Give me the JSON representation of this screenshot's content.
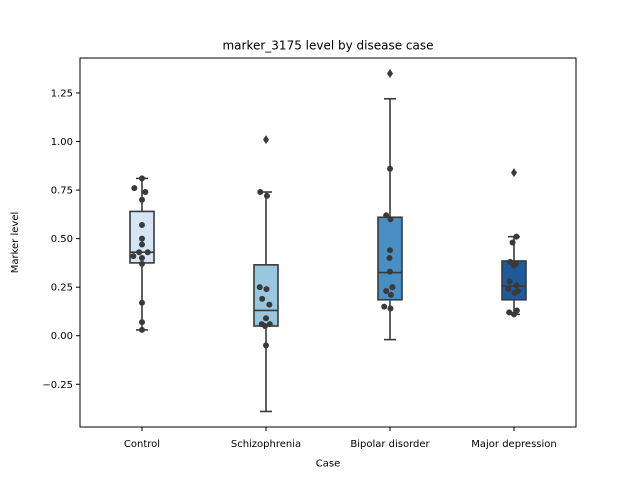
{
  "chart_data": {
    "type": "box",
    "title": "marker_3175 level by disease case",
    "xlabel": "Case",
    "ylabel": "Marker level",
    "ylim": [
      -0.47,
      1.43
    ],
    "yticks": [
      -0.25,
      0.0,
      0.25,
      0.5,
      0.75,
      1.0,
      1.25
    ],
    "ytick_labels": [
      "−0.25",
      "0.00",
      "0.25",
      "0.50",
      "0.75",
      "1.00",
      "1.25"
    ],
    "categories": [
      "Control",
      "Schizophrenia",
      "Bipolar disorder",
      "Major depression"
    ],
    "box_colors": [
      "#d6e5f3",
      "#9ac7e0",
      "#4a8fc3",
      "#1f5b9a"
    ],
    "boxes": [
      {
        "q1": 0.375,
        "median": 0.43,
        "q3": 0.64,
        "whisker_low": 0.03,
        "whisker_high": 0.81,
        "outliers": []
      },
      {
        "q1": 0.05,
        "median": 0.13,
        "q3": 0.365,
        "whisker_low": -0.39,
        "whisker_high": 0.74,
        "outliers": [
          1.01
        ]
      },
      {
        "q1": 0.185,
        "median": 0.325,
        "q3": 0.61,
        "whisker_low": -0.02,
        "whisker_high": 1.22,
        "outliers": [
          1.35
        ]
      },
      {
        "q1": 0.185,
        "median": 0.255,
        "q3": 0.385,
        "whisker_low": 0.11,
        "whisker_high": 0.51,
        "outliers": [
          0.84
        ]
      }
    ],
    "points": [
      [
        {
          "dx": 0,
          "y": 0.81
        },
        {
          "dx": -0.16,
          "y": 0.76
        },
        {
          "dx": 0.07,
          "y": 0.74
        },
        {
          "dx": 0,
          "y": 0.7
        },
        {
          "dx": 0,
          "y": 0.57
        },
        {
          "dx": 0,
          "y": 0.5
        },
        {
          "dx": 0,
          "y": 0.47
        },
        {
          "dx": -0.06,
          "y": 0.43
        },
        {
          "dx": 0.12,
          "y": 0.43
        },
        {
          "dx": -0.18,
          "y": 0.41
        },
        {
          "dx": 0,
          "y": 0.4
        },
        {
          "dx": 0,
          "y": 0.37
        },
        {
          "dx": 0,
          "y": 0.17
        },
        {
          "dx": 0,
          "y": 0.07
        },
        {
          "dx": 0,
          "y": 0.03
        }
      ],
      [
        {
          "dx": -0.12,
          "y": 0.74
        },
        {
          "dx": 0.02,
          "y": 0.72
        },
        {
          "dx": -0.13,
          "y": 0.25
        },
        {
          "dx": 0.01,
          "y": 0.24
        },
        {
          "dx": -0.08,
          "y": 0.19
        },
        {
          "dx": 0.07,
          "y": 0.16
        },
        {
          "dx": 0,
          "y": 0.09
        },
        {
          "dx": -0.09,
          "y": 0.06
        },
        {
          "dx": 0.08,
          "y": 0.06
        },
        {
          "dx": -0.02,
          "y": 0.05
        },
        {
          "dx": 0,
          "y": -0.05
        }
      ],
      [
        {
          "dx": 0,
          "y": 0.86
        },
        {
          "dx": -0.08,
          "y": 0.62
        },
        {
          "dx": 0.01,
          "y": 0.6
        },
        {
          "dx": 0,
          "y": 0.44
        },
        {
          "dx": -0.01,
          "y": 0.4
        },
        {
          "dx": 0,
          "y": 0.33
        },
        {
          "dx": 0.05,
          "y": 0.25
        },
        {
          "dx": -0.08,
          "y": 0.23
        },
        {
          "dx": 0.02,
          "y": 0.21
        },
        {
          "dx": -0.12,
          "y": 0.15
        },
        {
          "dx": 0.01,
          "y": 0.14
        }
      ],
      [
        {
          "dx": -0.03,
          "y": 0.48
        },
        {
          "dx": 0.05,
          "y": 0.51
        },
        {
          "dx": -0.08,
          "y": 0.38
        },
        {
          "dx": 0.04,
          "y": 0.37
        },
        {
          "dx": 0,
          "y": 0.36
        },
        {
          "dx": -0.09,
          "y": 0.28
        },
        {
          "dx": 0.05,
          "y": 0.26
        },
        {
          "dx": -0.12,
          "y": 0.24
        },
        {
          "dx": 0.01,
          "y": 0.22
        },
        {
          "dx": 0.08,
          "y": 0.23
        },
        {
          "dx": -0.1,
          "y": 0.12
        },
        {
          "dx": 0.0,
          "y": 0.11
        },
        {
          "dx": 0.06,
          "y": 0.13
        }
      ]
    ]
  }
}
